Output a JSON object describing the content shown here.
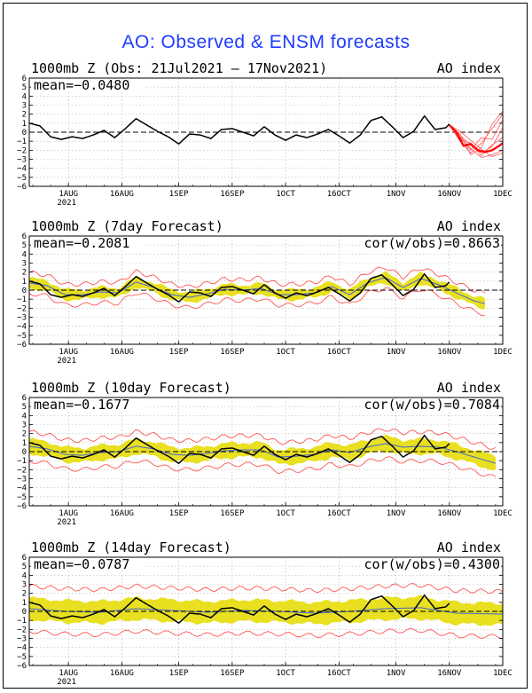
{
  "title": "AO: Observed & ENSM forecasts",
  "colors": {
    "title": "#1f3cff",
    "observed": "#000000",
    "forecast": "#ff0000",
    "members": "#ff5555",
    "spread": "#e8e020",
    "ensmean": "#4466cc"
  },
  "chart_data": [
    {
      "type": "line",
      "title": "1000mb Z (Obs: 21Jul2021 – 17Nov2021)",
      "right_label": "AO index",
      "mean_label": "mean=−0.0480",
      "cor_label": "",
      "ylim": [
        -6,
        6
      ],
      "yticks": [
        "6",
        "5",
        "4",
        "3",
        "2",
        "1",
        "0",
        "−1",
        "−2",
        "−3",
        "−4",
        "−5",
        "−6"
      ],
      "xticks": [
        {
          "label": "1AUG",
          "day": 11,
          "year": "2021"
        },
        {
          "label": "16AUG",
          "day": 26
        },
        {
          "label": "1SEP",
          "day": 42
        },
        {
          "label": "16SEP",
          "day": 57
        },
        {
          "label": "1OCT",
          "day": 72
        },
        {
          "label": "16OCT",
          "day": 87
        },
        {
          "label": "1NOV",
          "day": 103
        },
        {
          "label": "16NOV",
          "day": 118
        },
        {
          "label": "1DEC",
          "day": 133
        }
      ],
      "xlim": [
        0,
        133
      ],
      "observed": [
        [
          0,
          1.0
        ],
        [
          3,
          0.7
        ],
        [
          6,
          -0.5
        ],
        [
          9,
          -0.8
        ],
        [
          12,
          -0.5
        ],
        [
          15,
          -0.7
        ],
        [
          18,
          -0.3
        ],
        [
          21,
          0.2
        ],
        [
          24,
          -0.6
        ],
        [
          27,
          0.4
        ],
        [
          30,
          1.5
        ],
        [
          33,
          0.8
        ],
        [
          36,
          0.1
        ],
        [
          39,
          -0.5
        ],
        [
          42,
          -1.3
        ],
        [
          45,
          -0.2
        ],
        [
          48,
          -0.3
        ],
        [
          51,
          -0.7
        ],
        [
          54,
          0.3
        ],
        [
          57,
          0.4
        ],
        [
          60,
          0.0
        ],
        [
          63,
          -0.4
        ],
        [
          66,
          0.6
        ],
        [
          69,
          -0.3
        ],
        [
          72,
          -0.9
        ],
        [
          75,
          -0.3
        ],
        [
          78,
          -0.6
        ],
        [
          81,
          -0.2
        ],
        [
          84,
          0.3
        ],
        [
          87,
          -0.4
        ],
        [
          90,
          -1.2
        ],
        [
          93,
          -0.3
        ],
        [
          96,
          1.3
        ],
        [
          99,
          1.7
        ],
        [
          102,
          0.6
        ],
        [
          105,
          -0.6
        ],
        [
          108,
          0.1
        ],
        [
          111,
          1.8
        ],
        [
          114,
          0.3
        ],
        [
          117,
          0.5
        ],
        [
          118,
          0.9
        ]
      ],
      "forecast_mean": [
        [
          118,
          0.8
        ],
        [
          120,
          0.0
        ],
        [
          122,
          -1.5
        ],
        [
          124,
          -1.3
        ],
        [
          126,
          -2.0
        ],
        [
          128,
          -2.2
        ],
        [
          130,
          -2.0
        ],
        [
          132,
          -1.5
        ],
        [
          133,
          -1.2
        ]
      ],
      "members": [
        [
          [
            118,
            0.8
          ],
          [
            121,
            -0.6
          ],
          [
            124,
            -1.8
          ],
          [
            127,
            -2.8
          ],
          [
            130,
            -2.5
          ],
          [
            133,
            -2.0
          ]
        ],
        [
          [
            118,
            0.8
          ],
          [
            121,
            -0.3
          ],
          [
            124,
            -1.5
          ],
          [
            127,
            -2.3
          ],
          [
            130,
            -1.6
          ],
          [
            133,
            0.5
          ]
        ],
        [
          [
            118,
            0.8
          ],
          [
            121,
            -1.0
          ],
          [
            124,
            -2.3
          ],
          [
            127,
            -1.2
          ],
          [
            130,
            0.4
          ],
          [
            133,
            2.0
          ]
        ],
        [
          [
            118,
            0.8
          ],
          [
            121,
            0.1
          ],
          [
            124,
            -0.9
          ],
          [
            127,
            -1.9
          ],
          [
            130,
            -2.7
          ],
          [
            133,
            -2.3
          ]
        ],
        [
          [
            118,
            0.8
          ],
          [
            121,
            -0.5
          ],
          [
            124,
            -2.0
          ],
          [
            127,
            -0.6
          ],
          [
            130,
            -0.8
          ],
          [
            133,
            1.4
          ]
        ],
        [
          [
            118,
            0.8
          ],
          [
            121,
            -0.8
          ],
          [
            124,
            -1.2
          ],
          [
            127,
            -2.6
          ],
          [
            130,
            -1.4
          ],
          [
            133,
            -0.6
          ]
        ],
        [
          [
            118,
            0.8
          ],
          [
            121,
            -0.2
          ],
          [
            124,
            -2.5
          ],
          [
            127,
            -1.7
          ],
          [
            130,
            0.9
          ],
          [
            133,
            2.3
          ]
        ]
      ]
    },
    {
      "type": "line",
      "title": "1000mb Z (7day Forecast)",
      "right_label": "AO index",
      "mean_label": "mean=−0.2081",
      "cor_label": "cor(w/obs)=0.8663",
      "ylim": [
        -6,
        6
      ],
      "yticks": [
        "6",
        "5",
        "4",
        "3",
        "2",
        "1",
        "0",
        "−1",
        "−2",
        "−3",
        "−4",
        "−5",
        "−6"
      ],
      "xticks": [
        {
          "label": "1AUG",
          "day": 11,
          "year": "2021"
        },
        {
          "label": "16AUG",
          "day": 26
        },
        {
          "label": "1SEP",
          "day": 42
        },
        {
          "label": "16SEP",
          "day": 57
        },
        {
          "label": "1OCT",
          "day": 72
        },
        {
          "label": "16OCT",
          "day": 87
        },
        {
          "label": "1NOV",
          "day": 103
        },
        {
          "label": "16NOV",
          "day": 118
        },
        {
          "label": "1DEC",
          "day": 133
        }
      ],
      "xlim": [
        0,
        133
      ],
      "observed": [
        [
          0,
          1.0
        ],
        [
          3,
          0.7
        ],
        [
          6,
          -0.5
        ],
        [
          9,
          -0.8
        ],
        [
          12,
          -0.5
        ],
        [
          15,
          -0.7
        ],
        [
          18,
          -0.3
        ],
        [
          21,
          0.2
        ],
        [
          24,
          -0.6
        ],
        [
          27,
          0.4
        ],
        [
          30,
          1.5
        ],
        [
          33,
          0.8
        ],
        [
          36,
          0.1
        ],
        [
          39,
          -0.5
        ],
        [
          42,
          -1.3
        ],
        [
          45,
          -0.2
        ],
        [
          48,
          -0.3
        ],
        [
          51,
          -0.7
        ],
        [
          54,
          0.3
        ],
        [
          57,
          0.4
        ],
        [
          60,
          0.0
        ],
        [
          63,
          -0.4
        ],
        [
          66,
          0.6
        ],
        [
          69,
          -0.3
        ],
        [
          72,
          -0.9
        ],
        [
          75,
          -0.3
        ],
        [
          78,
          -0.6
        ],
        [
          81,
          -0.2
        ],
        [
          84,
          0.3
        ],
        [
          87,
          -0.4
        ],
        [
          90,
          -1.2
        ],
        [
          93,
          -0.3
        ],
        [
          96,
          1.3
        ],
        [
          99,
          1.7
        ],
        [
          102,
          0.6
        ],
        [
          105,
          -0.6
        ],
        [
          108,
          0.1
        ],
        [
          111,
          1.8
        ],
        [
          114,
          0.3
        ],
        [
          117,
          0.5
        ],
        [
          118,
          0.9
        ]
      ],
      "ensmean": [
        [
          0,
          0.8
        ],
        [
          5,
          0.5
        ],
        [
          10,
          -0.5
        ],
        [
          15,
          -0.5
        ],
        [
          20,
          -0.2
        ],
        [
          25,
          -0.3
        ],
        [
          30,
          0.9
        ],
        [
          35,
          0.3
        ],
        [
          40,
          -0.5
        ],
        [
          45,
          -0.8
        ],
        [
          50,
          -0.4
        ],
        [
          55,
          0.1
        ],
        [
          60,
          0.0
        ],
        [
          65,
          0.2
        ],
        [
          70,
          -0.5
        ],
        [
          75,
          -0.5
        ],
        [
          80,
          -0.3
        ],
        [
          85,
          0.4
        ],
        [
          90,
          -0.5
        ],
        [
          95,
          0.8
        ],
        [
          100,
          1.4
        ],
        [
          105,
          0.3
        ],
        [
          110,
          1.3
        ],
        [
          115,
          0.6
        ],
        [
          120,
          -0.3
        ],
        [
          125,
          -1.2
        ],
        [
          128,
          -1.5
        ]
      ],
      "spread": 0.55,
      "outer": 1.15,
      "end": 128
    },
    {
      "type": "line",
      "title": "1000mb Z (10day Forecast)",
      "right_label": "AO index",
      "mean_label": "mean=−0.1677",
      "cor_label": "cor(w/obs)=0.7084",
      "ylim": [
        -6,
        6
      ],
      "yticks": [
        "6",
        "5",
        "4",
        "3",
        "2",
        "1",
        "0",
        "−1",
        "−2",
        "−3",
        "−4",
        "−5",
        "−6"
      ],
      "xticks": [
        {
          "label": "1AUG",
          "day": 11,
          "year": "2021"
        },
        {
          "label": "16AUG",
          "day": 26
        },
        {
          "label": "1SEP",
          "day": 42
        },
        {
          "label": "16SEP",
          "day": 57
        },
        {
          "label": "1OCT",
          "day": 72
        },
        {
          "label": "16OCT",
          "day": 87
        },
        {
          "label": "1NOV",
          "day": 103
        },
        {
          "label": "16NOV",
          "day": 118
        },
        {
          "label": "1DEC",
          "day": 133
        }
      ],
      "xlim": [
        0,
        133
      ],
      "observed": [
        [
          0,
          1.0
        ],
        [
          3,
          0.7
        ],
        [
          6,
          -0.5
        ],
        [
          9,
          -0.8
        ],
        [
          12,
          -0.5
        ],
        [
          15,
          -0.7
        ],
        [
          18,
          -0.3
        ],
        [
          21,
          0.2
        ],
        [
          24,
          -0.6
        ],
        [
          27,
          0.4
        ],
        [
          30,
          1.5
        ],
        [
          33,
          0.8
        ],
        [
          36,
          0.1
        ],
        [
          39,
          -0.5
        ],
        [
          42,
          -1.3
        ],
        [
          45,
          -0.2
        ],
        [
          48,
          -0.3
        ],
        [
          51,
          -0.7
        ],
        [
          54,
          0.3
        ],
        [
          57,
          0.4
        ],
        [
          60,
          0.0
        ],
        [
          63,
          -0.4
        ],
        [
          66,
          0.6
        ],
        [
          69,
          -0.3
        ],
        [
          72,
          -0.9
        ],
        [
          75,
          -0.3
        ],
        [
          78,
          -0.6
        ],
        [
          81,
          -0.2
        ],
        [
          84,
          0.3
        ],
        [
          87,
          -0.4
        ],
        [
          90,
          -1.2
        ],
        [
          93,
          -0.3
        ],
        [
          96,
          1.3
        ],
        [
          99,
          1.7
        ],
        [
          102,
          0.6
        ],
        [
          105,
          -0.6
        ],
        [
          108,
          0.1
        ],
        [
          111,
          1.8
        ],
        [
          114,
          0.3
        ],
        [
          117,
          0.5
        ],
        [
          118,
          0.9
        ]
      ],
      "ensmean": [
        [
          0,
          0.6
        ],
        [
          5,
          0.3
        ],
        [
          10,
          -0.3
        ],
        [
          15,
          -0.4
        ],
        [
          20,
          -0.1
        ],
        [
          25,
          0.0
        ],
        [
          30,
          0.6
        ],
        [
          35,
          0.3
        ],
        [
          40,
          -0.3
        ],
        [
          45,
          -0.4
        ],
        [
          50,
          -0.2
        ],
        [
          55,
          0.1
        ],
        [
          60,
          0.2
        ],
        [
          65,
          0.2
        ],
        [
          70,
          -0.6
        ],
        [
          75,
          -0.5
        ],
        [
          80,
          -0.3
        ],
        [
          85,
          0.2
        ],
        [
          90,
          -0.1
        ],
        [
          95,
          0.5
        ],
        [
          100,
          0.9
        ],
        [
          105,
          0.5
        ],
        [
          110,
          0.6
        ],
        [
          115,
          0.5
        ],
        [
          120,
          0.0
        ],
        [
          125,
          -0.6
        ],
        [
          131,
          -1.3
        ]
      ],
      "spread": 0.8,
      "outer": 1.6,
      "end": 131
    },
    {
      "type": "line",
      "title": "1000mb Z (14day Forecast)",
      "right_label": "AO index",
      "mean_label": "mean=−0.0787",
      "cor_label": "cor(w/obs)=0.4300",
      "ylim": [
        -6,
        6
      ],
      "yticks": [
        "6",
        "5",
        "4",
        "3",
        "2",
        "1",
        "0",
        "−1",
        "−2",
        "−3",
        "−4",
        "−5",
        "−6"
      ],
      "xticks": [
        {
          "label": "1AUG",
          "day": 11,
          "year": "2021"
        },
        {
          "label": "16AUG",
          "day": 26
        },
        {
          "label": "1SEP",
          "day": 42
        },
        {
          "label": "16SEP",
          "day": 57
        },
        {
          "label": "1OCT",
          "day": 72
        },
        {
          "label": "16OCT",
          "day": 87
        },
        {
          "label": "1NOV",
          "day": 103
        },
        {
          "label": "16NOV",
          "day": 118
        },
        {
          "label": "1DEC",
          "day": 133
        }
      ],
      "xlim": [
        0,
        133
      ],
      "observed": [
        [
          0,
          1.0
        ],
        [
          3,
          0.7
        ],
        [
          6,
          -0.5
        ],
        [
          9,
          -0.8
        ],
        [
          12,
          -0.5
        ],
        [
          15,
          -0.7
        ],
        [
          18,
          -0.3
        ],
        [
          21,
          0.2
        ],
        [
          24,
          -0.6
        ],
        [
          27,
          0.4
        ],
        [
          30,
          1.5
        ],
        [
          33,
          0.8
        ],
        [
          36,
          0.1
        ],
        [
          39,
          -0.5
        ],
        [
          42,
          -1.3
        ],
        [
          45,
          -0.2
        ],
        [
          48,
          -0.3
        ],
        [
          51,
          -0.7
        ],
        [
          54,
          0.3
        ],
        [
          57,
          0.4
        ],
        [
          60,
          0.0
        ],
        [
          63,
          -0.4
        ],
        [
          66,
          0.6
        ],
        [
          69,
          -0.3
        ],
        [
          72,
          -0.9
        ],
        [
          75,
          -0.3
        ],
        [
          78,
          -0.6
        ],
        [
          81,
          -0.2
        ],
        [
          84,
          0.3
        ],
        [
          87,
          -0.4
        ],
        [
          90,
          -1.2
        ],
        [
          93,
          -0.3
        ],
        [
          96,
          1.3
        ],
        [
          99,
          1.7
        ],
        [
          102,
          0.6
        ],
        [
          105,
          -0.6
        ],
        [
          108,
          0.1
        ],
        [
          111,
          1.8
        ],
        [
          114,
          0.3
        ],
        [
          117,
          0.5
        ],
        [
          118,
          0.9
        ]
      ],
      "ensmean": [
        [
          0,
          0.3
        ],
        [
          10,
          0.0
        ],
        [
          20,
          -0.1
        ],
        [
          30,
          0.3
        ],
        [
          40,
          0.1
        ],
        [
          50,
          -0.1
        ],
        [
          60,
          0.1
        ],
        [
          70,
          0.0
        ],
        [
          80,
          -0.2
        ],
        [
          90,
          0.0
        ],
        [
          100,
          0.3
        ],
        [
          110,
          0.4
        ],
        [
          120,
          -0.2
        ],
        [
          133,
          -0.3
        ]
      ],
      "spread": 1.2,
      "outer": 2.5,
      "end": 133
    }
  ]
}
